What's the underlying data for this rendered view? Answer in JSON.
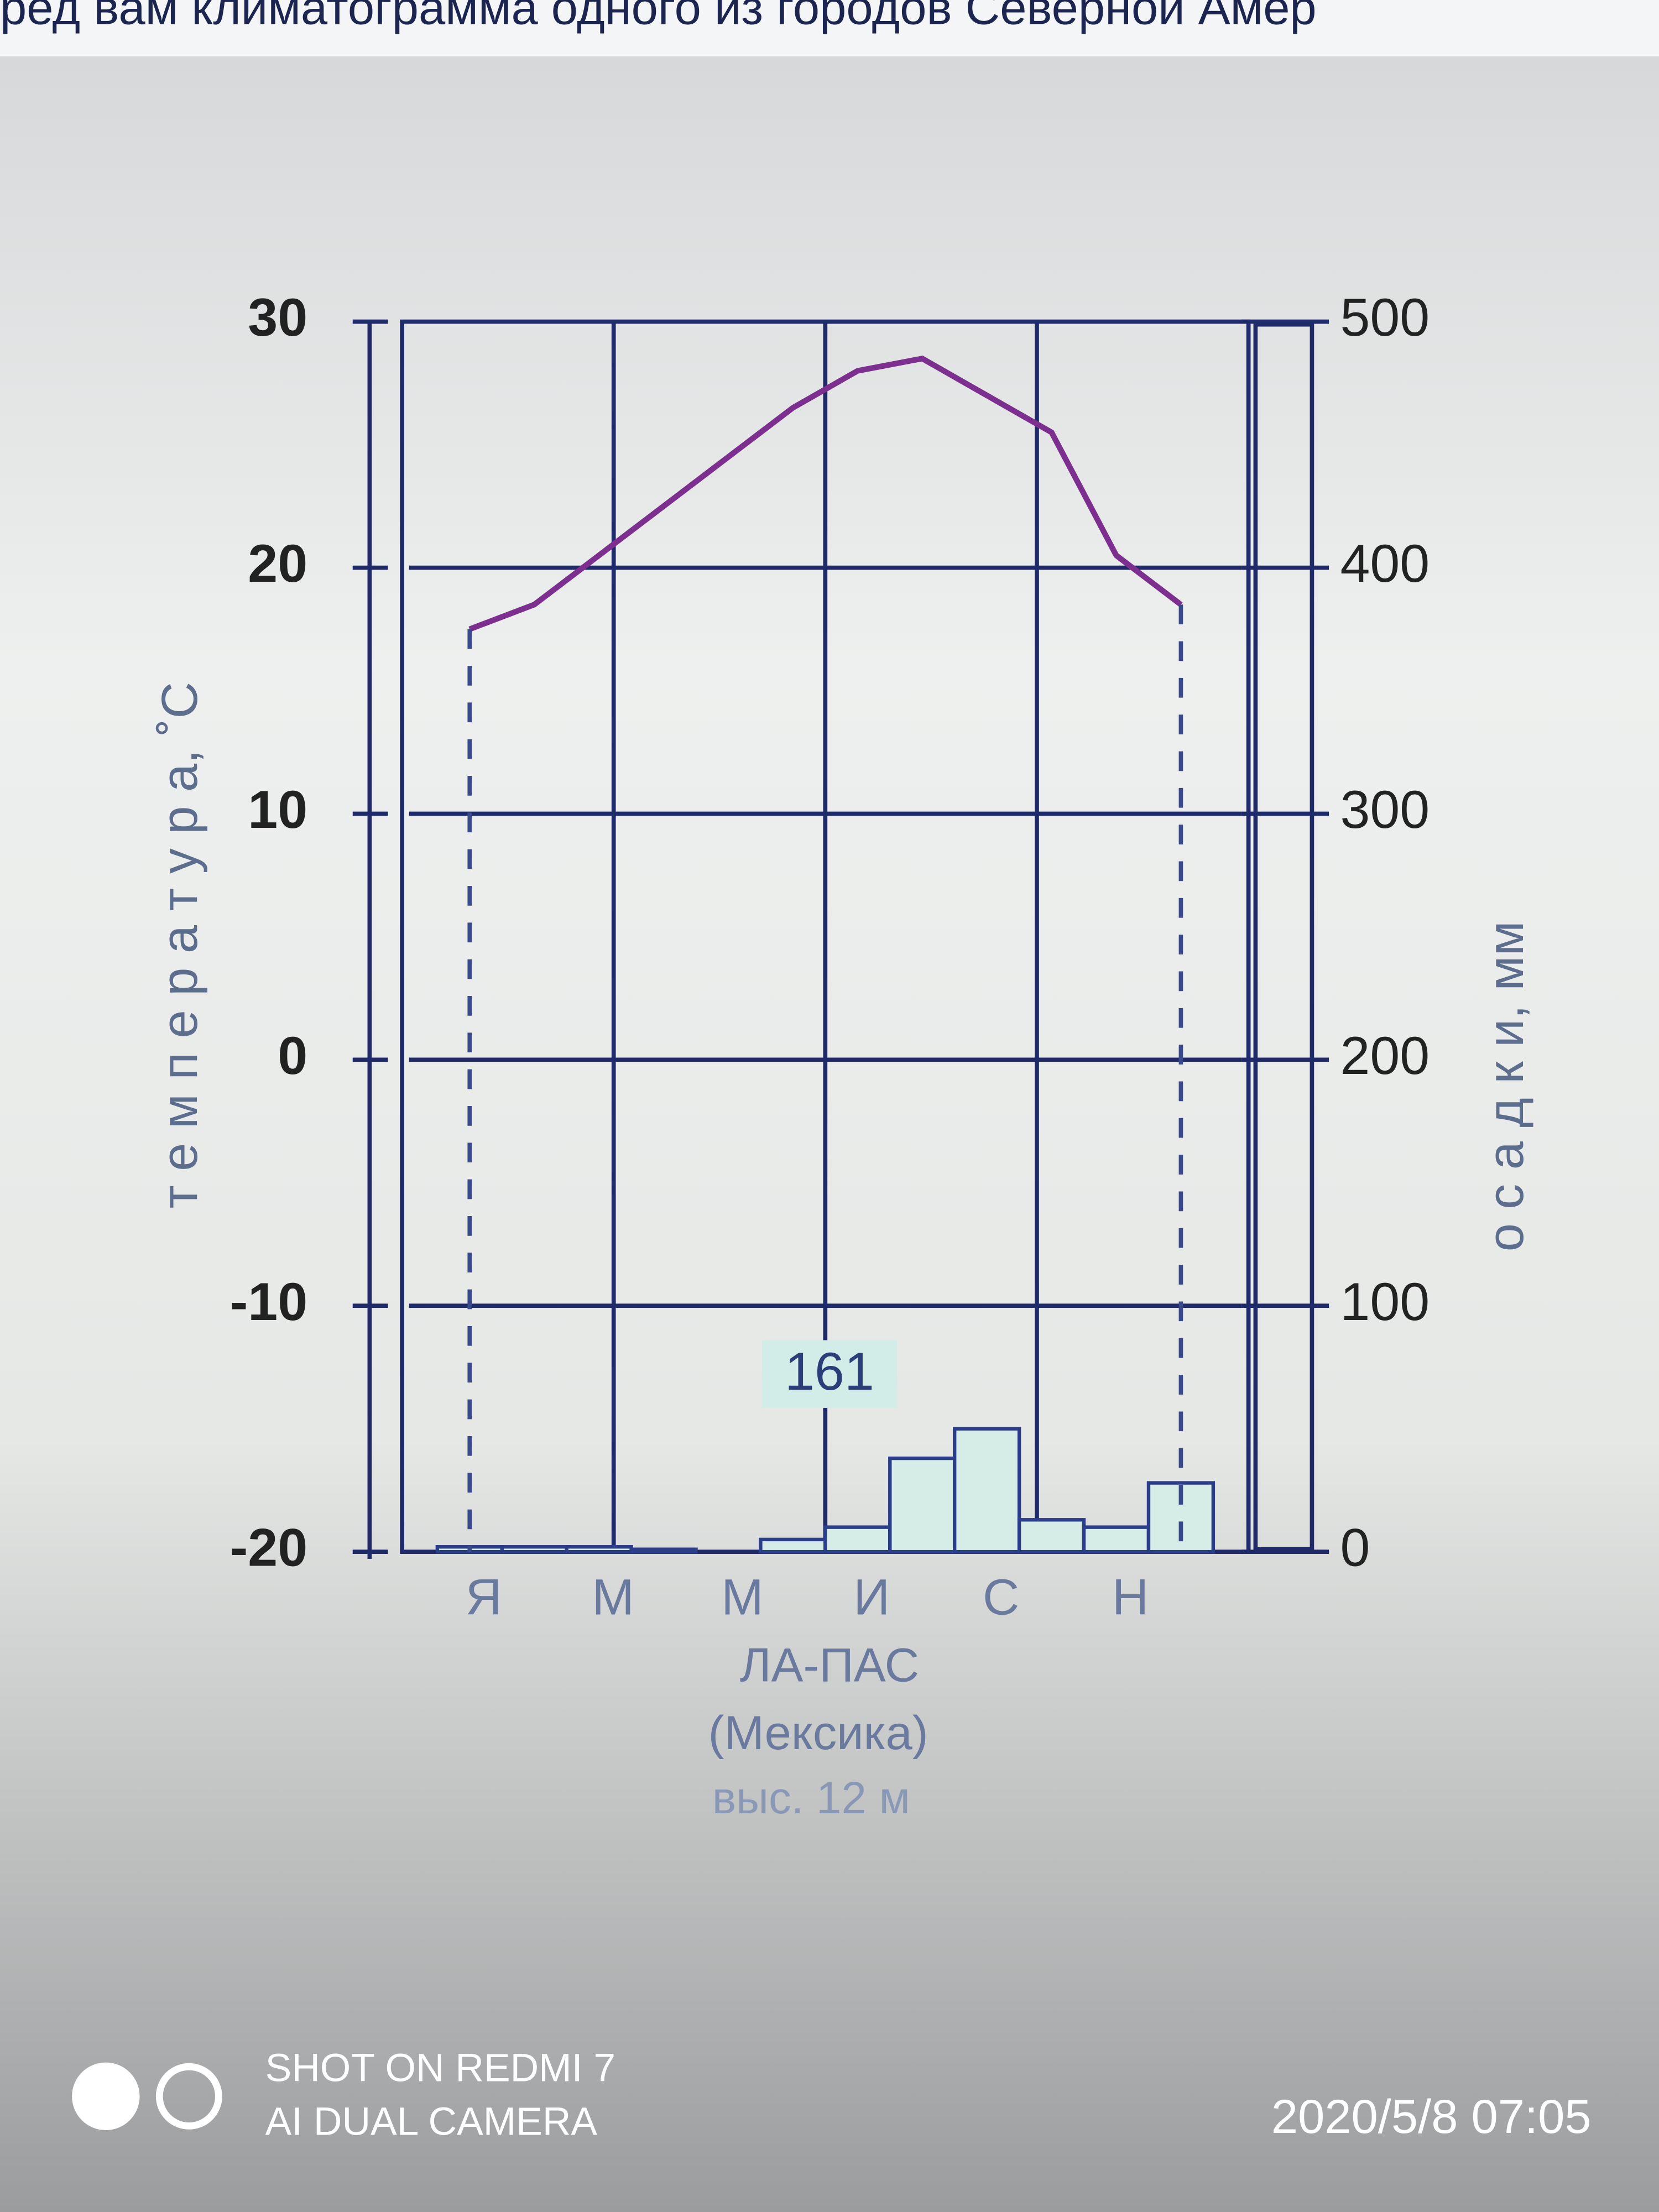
{
  "page": {
    "heading": "ред вам климатограмма одного из городов Северной Амер",
    "watermark": [
      "SHOT ON REDMI 7",
      "AI DUAL CAMERA"
    ],
    "timestamp": "2020/5/8  07:05"
  },
  "chart_data": {
    "type": "climatogram",
    "ylabel": "т е м п е р а т у р а, ˚С",
    "y2label": "о с а д к и, мм",
    "caption": [
      "ЛА-ПАС",
      "(Мексика)",
      "выс. 12 м"
    ],
    "total": 161,
    "categories": [
      "Я",
      null,
      "М",
      null,
      "М",
      null,
      "И",
      null,
      "С",
      null,
      "Н",
      null
    ],
    "series": [
      {
        "kind": "line",
        "color": "#7d2f8f",
        "values": [
          17.5,
          18.5,
          20.5,
          22.5,
          24.5,
          26.5,
          28,
          28.5,
          27,
          25.5,
          20.5,
          18.5
        ]
      },
      {
        "kind": "bar",
        "axis": "y2",
        "color": "#d6ece6",
        "values": [
          2,
          2,
          2,
          1,
          0,
          5,
          10,
          38,
          50,
          13,
          10,
          28
        ]
      }
    ],
    "ylim": [
      -20,
      30
    ],
    "yticks": [
      -20,
      -10,
      0,
      10,
      20,
      30
    ],
    "y2lim": [
      0,
      500
    ],
    "y2ticks": [
      0,
      100,
      200,
      300,
      400,
      500
    ],
    "grid": true
  }
}
